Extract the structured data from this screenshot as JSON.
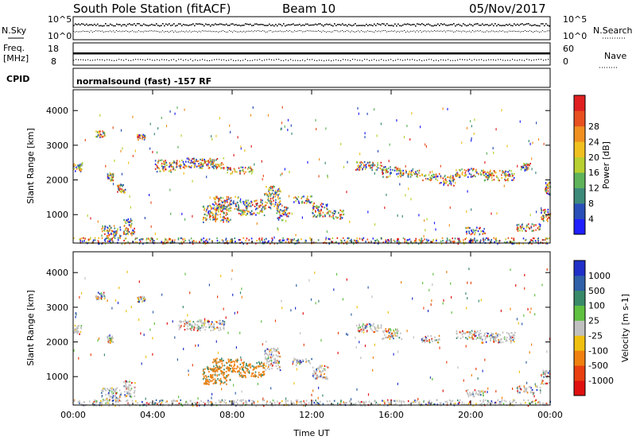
{
  "header": {
    "station": "South Pole Station (fitACF)",
    "beam": "Beam 10",
    "date": "05/Nov/2017"
  },
  "aux_panels": {
    "nsky_label": "N.Sky",
    "nsky_ticks": [
      "10^5",
      "10^0"
    ],
    "nsearch_label": "N.Search",
    "nsearch_ticks": [
      "10^5",
      "10^0"
    ],
    "freq_label_line1": "Freq.",
    "freq_label_line2": "[MHz]",
    "freq_ticks": [
      "18",
      "8"
    ],
    "nave_label": "Nave",
    "nave_ticks": [
      "60",
      "0"
    ],
    "cpid_label": "CPID",
    "cpid_text": "normalsound (fast) -157 RF"
  },
  "chart_data": [
    {
      "type": "heatmap",
      "name": "power",
      "ylabel": "Slant Range [km]",
      "xlabel": "Time UT",
      "x_ticks": [
        "00:00",
        "04:00",
        "08:00",
        "12:00",
        "16:00",
        "20:00",
        "00:00"
      ],
      "x_hours": [
        0,
        4,
        8,
        12,
        16,
        20,
        24
      ],
      "y_ticks": [
        "1000",
        "2000",
        "3000",
        "4000"
      ],
      "y_values": [
        1000,
        2000,
        3000,
        4000
      ],
      "xlim": [
        0,
        24
      ],
      "ylim": [
        180,
        4600
      ],
      "colorbar_label": "Power [dB]",
      "colorbar_ticks": [
        "4",
        "8",
        "12",
        "16",
        "20",
        "24",
        "28"
      ],
      "colorbar_values": [
        4,
        8,
        12,
        16,
        20,
        24,
        28
      ],
      "colorbar_range": [
        0,
        30
      ],
      "colors": [
        "#2020ff",
        "#2a4fb8",
        "#3d8a7a",
        "#5fb35a",
        "#b8d030",
        "#f0c020",
        "#f09020",
        "#e85020",
        "#e02020"
      ],
      "echo_regions": [
        {
          "t0": 0.0,
          "t1": 0.4,
          "r0": 2250,
          "r1": 2500
        },
        {
          "t0": 1.1,
          "t1": 1.6,
          "r0": 3250,
          "r1": 3450
        },
        {
          "t0": 1.7,
          "t1": 2.0,
          "r0": 2000,
          "r1": 2200
        },
        {
          "t0": 2.2,
          "t1": 2.6,
          "r0": 1650,
          "r1": 1900
        },
        {
          "t0": 3.2,
          "t1": 3.6,
          "r0": 3180,
          "r1": 3330
        },
        {
          "t0": 1.4,
          "t1": 2.4,
          "r0": 320,
          "r1": 700
        },
        {
          "t0": 2.5,
          "t1": 3.1,
          "r0": 430,
          "r1": 900
        },
        {
          "t0": 4.1,
          "t1": 5.2,
          "r0": 2250,
          "r1": 2600
        },
        {
          "t0": 5.3,
          "t1": 7.6,
          "r0": 2350,
          "r1": 2650
        },
        {
          "t0": 7.7,
          "t1": 9.0,
          "r0": 2200,
          "r1": 2400
        },
        {
          "t0": 6.5,
          "t1": 7.9,
          "r0": 800,
          "r1": 1300
        },
        {
          "t0": 7.0,
          "t1": 8.3,
          "r0": 1150,
          "r1": 1550
        },
        {
          "t0": 8.3,
          "t1": 9.6,
          "r0": 1000,
          "r1": 1450
        },
        {
          "t0": 9.6,
          "t1": 10.4,
          "r0": 1200,
          "r1": 1850
        },
        {
          "t0": 10.2,
          "t1": 10.8,
          "r0": 850,
          "r1": 1250
        },
        {
          "t0": 11.0,
          "t1": 12.0,
          "r0": 1350,
          "r1": 1550
        },
        {
          "t0": 12.0,
          "t1": 12.8,
          "r0": 950,
          "r1": 1350
        },
        {
          "t0": 12.8,
          "t1": 13.6,
          "r0": 900,
          "r1": 1150
        },
        {
          "t0": 14.2,
          "t1": 15.5,
          "r0": 2300,
          "r1": 2550
        },
        {
          "t0": 15.5,
          "t1": 16.5,
          "r0": 2100,
          "r1": 2400
        },
        {
          "t0": 16.5,
          "t1": 17.5,
          "r0": 2100,
          "r1": 2300
        },
        {
          "t0": 17.5,
          "t1": 18.4,
          "r0": 2000,
          "r1": 2200
        },
        {
          "t0": 18.4,
          "t1": 19.2,
          "r0": 1850,
          "r1": 2150
        },
        {
          "t0": 19.2,
          "t1": 20.5,
          "r0": 2100,
          "r1": 2350
        },
        {
          "t0": 20.5,
          "t1": 22.2,
          "r0": 2000,
          "r1": 2300
        },
        {
          "t0": 22.5,
          "t1": 23.0,
          "r0": 2300,
          "r1": 2500
        },
        {
          "t0": 23.7,
          "t1": 24.0,
          "r0": 1600,
          "r1": 2000
        },
        {
          "t0": 19.7,
          "t1": 20.7,
          "r0": 450,
          "r1": 650
        },
        {
          "t0": 22.3,
          "t1": 23.5,
          "r0": 550,
          "r1": 750
        },
        {
          "t0": 23.5,
          "t1": 24.0,
          "r0": 800,
          "r1": 1200
        },
        {
          "t0": 0.0,
          "t1": 24.0,
          "r0": 180,
          "r1": 350
        }
      ]
    },
    {
      "type": "heatmap",
      "name": "velocity",
      "ylabel": "Slant Range [km]",
      "xlabel": "Time UT",
      "x_ticks": [
        "00:00",
        "04:00",
        "08:00",
        "12:00",
        "16:00",
        "20:00",
        "00:00"
      ],
      "x_hours": [
        0,
        4,
        8,
        12,
        16,
        20,
        24
      ],
      "y_ticks": [
        "1000",
        "2000",
        "3000",
        "4000"
      ],
      "y_values": [
        1000,
        2000,
        3000,
        4000
      ],
      "xlim": [
        0,
        24
      ],
      "ylim": [
        180,
        4600
      ],
      "colorbar_label": "Velocity [m s-1]",
      "colorbar_ticks": [
        "1000",
        "500",
        "100",
        "25",
        "-25",
        "-100",
        "-500",
        "-1000"
      ],
      "colorbar_values": [
        1000,
        500,
        100,
        25,
        -25,
        -100,
        -500,
        -1000
      ],
      "colors": [
        "#2030c8",
        "#3060a8",
        "#3a8a6a",
        "#60c040",
        "#c0c0c0",
        "#f0c010",
        "#f08010",
        "#e84010",
        "#e01010"
      ],
      "echo_regions": [
        {
          "t0": 0.0,
          "t1": 0.4,
          "r0": 2250,
          "r1": 2500
        },
        {
          "t0": 1.1,
          "t1": 1.6,
          "r0": 3250,
          "r1": 3450
        },
        {
          "t0": 1.7,
          "t1": 2.0,
          "r0": 2000,
          "r1": 2200
        },
        {
          "t0": 3.2,
          "t1": 3.6,
          "r0": 3180,
          "r1": 3330
        },
        {
          "t0": 1.4,
          "t1": 2.4,
          "r0": 320,
          "r1": 700
        },
        {
          "t0": 2.5,
          "t1": 3.1,
          "r0": 430,
          "r1": 900
        },
        {
          "t0": 5.3,
          "t1": 7.6,
          "r0": 2350,
          "r1": 2650
        },
        {
          "t0": 6.5,
          "t1": 7.9,
          "r0": 800,
          "r1": 1300
        },
        {
          "t0": 7.0,
          "t1": 8.3,
          "r0": 1150,
          "r1": 1550
        },
        {
          "t0": 8.3,
          "t1": 9.6,
          "r0": 1000,
          "r1": 1450
        },
        {
          "t0": 9.6,
          "t1": 10.4,
          "r0": 1200,
          "r1": 1850
        },
        {
          "t0": 11.0,
          "t1": 12.0,
          "r0": 1350,
          "r1": 1550
        },
        {
          "t0": 12.0,
          "t1": 12.8,
          "r0": 950,
          "r1": 1350
        },
        {
          "t0": 14.2,
          "t1": 15.5,
          "r0": 2300,
          "r1": 2550
        },
        {
          "t0": 15.5,
          "t1": 16.5,
          "r0": 2100,
          "r1": 2400
        },
        {
          "t0": 17.5,
          "t1": 18.4,
          "r0": 2000,
          "r1": 2200
        },
        {
          "t0": 19.2,
          "t1": 20.5,
          "r0": 2100,
          "r1": 2350
        },
        {
          "t0": 20.5,
          "t1": 22.2,
          "r0": 2000,
          "r1": 2300
        },
        {
          "t0": 19.7,
          "t1": 20.7,
          "r0": 450,
          "r1": 650
        },
        {
          "t0": 22.3,
          "t1": 23.5,
          "r0": 550,
          "r1": 750
        },
        {
          "t0": 23.5,
          "t1": 24.0,
          "r0": 800,
          "r1": 1200
        },
        {
          "t0": 0.0,
          "t1": 24.0,
          "r0": 180,
          "r1": 350
        }
      ]
    }
  ]
}
